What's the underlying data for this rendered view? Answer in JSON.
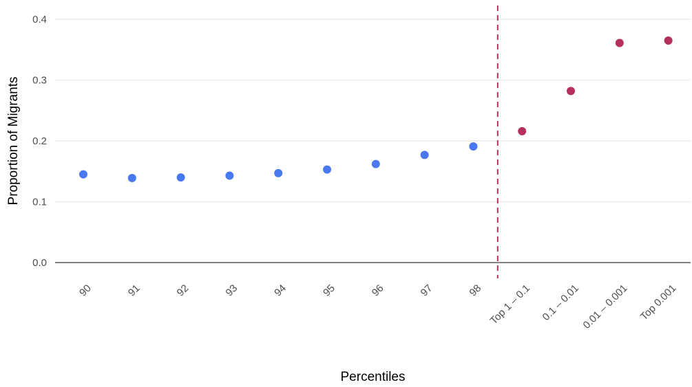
{
  "chart_data": {
    "type": "scatter",
    "title": "",
    "xlabel": "Percentiles",
    "ylabel": "Proportion of Migrants",
    "categories": [
      "90",
      "91",
      "92",
      "93",
      "94",
      "95",
      "96",
      "97",
      "98",
      "Top 1 – 0.1",
      "0.1 – 0.01",
      "0.01 – 0.001",
      "Top 0.001"
    ],
    "series": [
      {
        "categories": [
          "90",
          "91",
          "92",
          "93",
          "94",
          "95",
          "96",
          "97",
          "98"
        ],
        "values": [
          0.145,
          0.139,
          0.14,
          0.143,
          0.147,
          0.153,
          0.162,
          0.177,
          0.191
        ],
        "color": "#4a78f0"
      },
      {
        "categories": [
          "Top 1 – 0.1",
          "0.1 – 0.01",
          "0.01 – 0.001",
          "Top 0.001"
        ],
        "values": [
          0.216,
          0.282,
          0.361,
          0.365
        ],
        "color": "#b5305f"
      }
    ],
    "y_ticks": [
      0.0,
      0.1,
      0.2,
      0.3,
      0.4
    ],
    "y_tick_labels": [
      "0.0",
      "0.1",
      "0.2",
      "0.3",
      "0.4"
    ],
    "ylim": [
      0,
      0.4
    ],
    "reference_line": {
      "between": [
        "98",
        "Top 1 – 0.1"
      ],
      "style": "dashed",
      "color": "#b5305f"
    },
    "grid": true,
    "legend": "none"
  }
}
